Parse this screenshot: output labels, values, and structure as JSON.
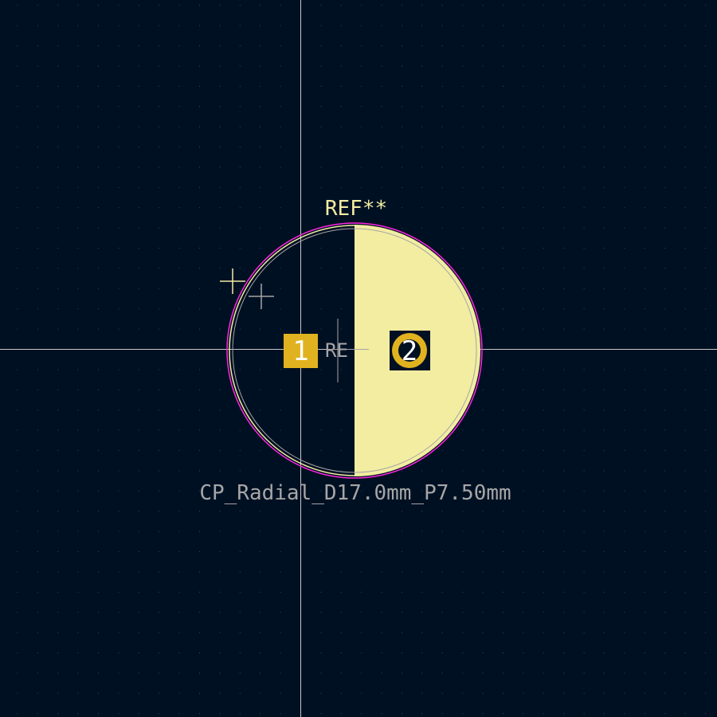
{
  "footprint": {
    "reference": "REF**",
    "value": "CP_Radial_D17.0mm_P7.50mm",
    "fab_reference": "RE"
  },
  "pads": [
    {
      "number": "1",
      "shape": "square"
    },
    {
      "number": "2",
      "shape": "circle"
    }
  ],
  "colors": {
    "background": "#001023",
    "grid_dot": "#3a4658",
    "crosshair": "#c8c8c8",
    "silkscreen": "#f2eda1",
    "fab": "#a6a6a6",
    "courtyard": "#ff26e2",
    "copper_pad": "#e0b21f",
    "pad_number": "#ffffff"
  }
}
